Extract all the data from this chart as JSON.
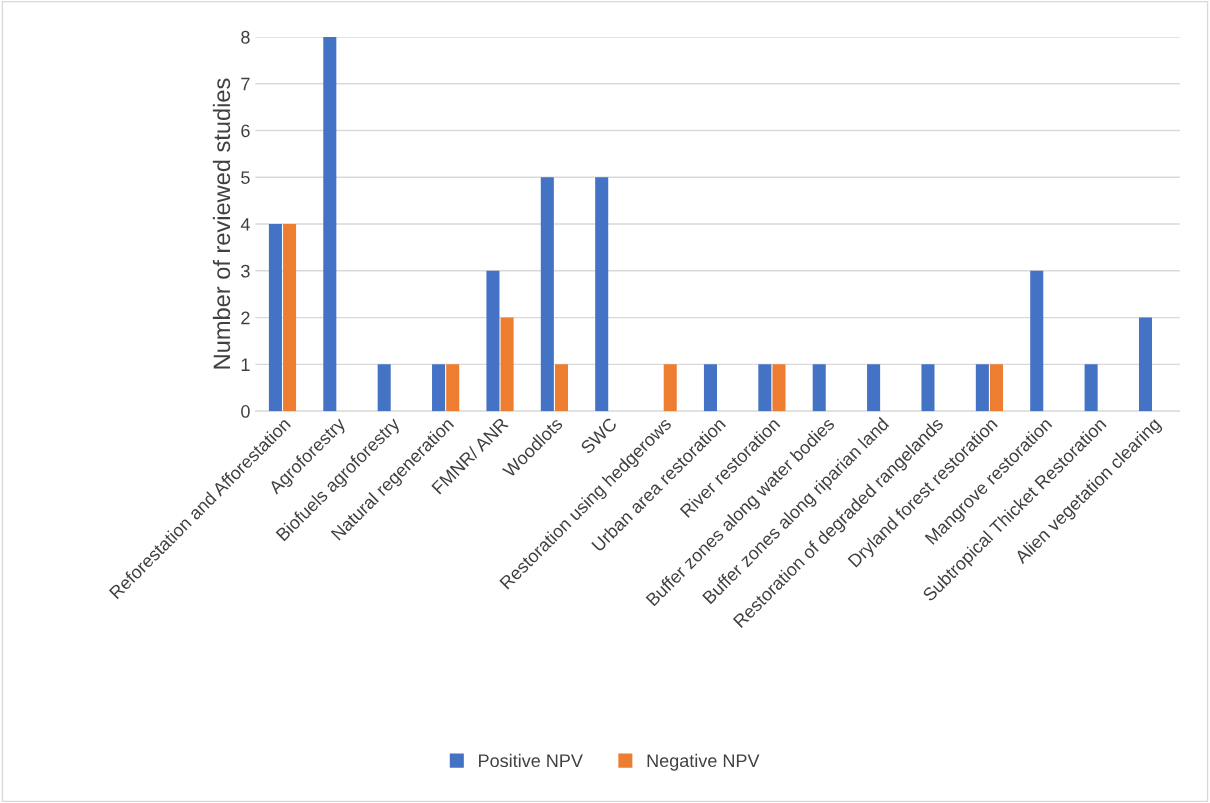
{
  "chart_data": {
    "type": "bar",
    "ylabel": "Number of reviewed studies",
    "categories": [
      "Reforestation and Afforestation",
      "Agroforestry",
      "Biofuels agroforestry",
      "Natural regeneration",
      "FMNR/ ANR",
      "Woodlots",
      "SWC",
      "Restoration using hedgerows",
      "Urban area restoration",
      "River restoration",
      "Buffer zones along water bodies",
      "Buffer zones along riparian land",
      "Restoration of degraded rangelands",
      "Dryland forest restoration",
      "Mangrove restoration",
      "Subtropical Thicket Restoration",
      "Alien vegetation clearing"
    ],
    "series": [
      {
        "name": "Positive NPV",
        "color": "#4472c4",
        "values": [
          4,
          8,
          1,
          1,
          3,
          5,
          5,
          0,
          1,
          1,
          1,
          1,
          1,
          1,
          3,
          1,
          2
        ]
      },
      {
        "name": "Negative NPV",
        "color": "#ed7d31",
        "values": [
          4,
          0,
          0,
          1,
          2,
          1,
          0,
          1,
          0,
          1,
          0,
          0,
          0,
          1,
          0,
          0,
          0
        ]
      }
    ],
    "ylim": [
      0,
      8
    ],
    "yticks": [
      0,
      1,
      2,
      3,
      4,
      5,
      6,
      7,
      8
    ],
    "grid": "y",
    "legend": "bottom"
  }
}
